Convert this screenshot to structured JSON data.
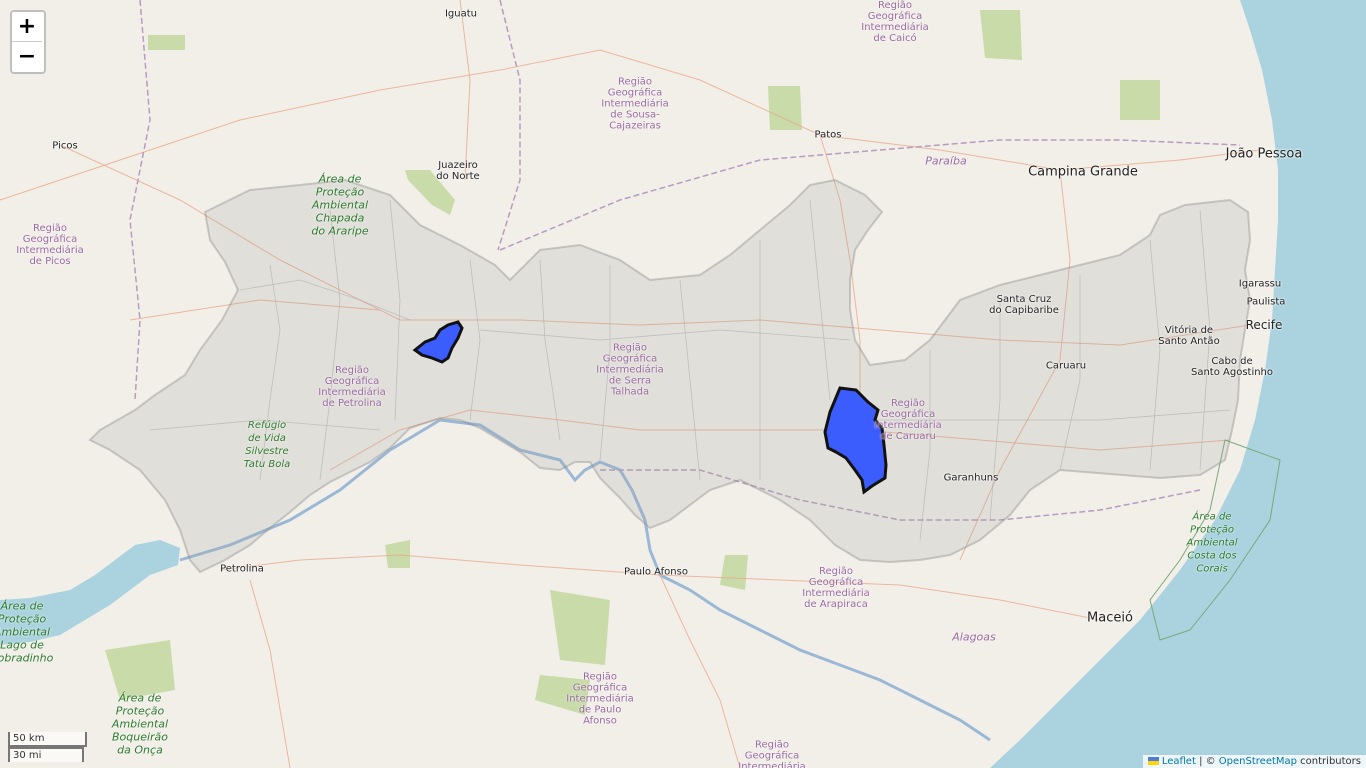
{
  "controls": {
    "zoom_in": "+",
    "zoom_out": "−",
    "scale_metric": "50 km",
    "scale_imperial": "30 mi"
  },
  "attribution": {
    "flag_icon": "ukraine-flag-icon",
    "leaflet": "Leaflet",
    "separator": " | © ",
    "osm": "OpenStreetMap",
    "suffix": " contributors"
  },
  "colors": {
    "sea": "#aad3df",
    "land": "#f2efe9",
    "overlay_fill": "#9e9e9e",
    "selected_fill": "#3355ff",
    "selected_stroke": "#111111",
    "park_green": "#c8dba9",
    "river": "#9ab8d6"
  },
  "labels": {
    "cities": {
      "iguatu": "Iguatu",
      "picos": "Picos",
      "juazeiro": "Juazeiro\ndo Norte",
      "patos": "Patos",
      "campina": "Campina Grande",
      "joao_pessoa": "João Pessoa",
      "igarassu": "Igarassu",
      "paulista": "Paulista",
      "recife": "Recife",
      "santa_cruz": "Santa Cruz\ndo Capibaribe",
      "vitoria": "Vitória de\nSanto Antão",
      "cabo": "Cabo de\nSanto Agostinho",
      "caruaru": "Caruaru",
      "garanhuns": "Garanhuns",
      "petrolina": "Petrolina",
      "paulo_afonso": "Paulo Afonso",
      "maceio": "Maceió"
    },
    "regions": {
      "caico": "Região\nGeográfica\nIntermediária\nde Caicó",
      "sousa": "Região\nGeográfica\nIntermediária\nde Sousa-\nCajazeiras",
      "picos": "Região\nGeográfica\nIntermediária\nde Picos",
      "serra_talhada": "Região\nGeográfica\nIntermediária\nde Serra\nTalhada",
      "petrolina": "Região\nGeográfica\nIntermediária\nde Petrolina",
      "caruaru": "Região\nGeográfica\nIntermediária\nde Caruaru",
      "arapiraca": "Região\nGeográfica\nIntermediária\nde Arapiraca",
      "paulo_afonso": "Região\nGeográfica\nIntermediária\nde Paulo\nAfonso",
      "bottom": "Região\nGeográfica\nIntermediária"
    },
    "parks": {
      "araripe": "Área de\nProteção\nAmbiental\nChapada\ndo Araripe",
      "tatu_bola": "Refúgio\nde Vida\nSilvestre\nTatu Bola",
      "sobradinho": "Área de\nProteção\nAmbiental\nLago de\nSobradinho",
      "boqueirao": "Área de\nProteção\nAmbiental\nBoqueirão\nda Onça",
      "corais": "Área de\nProteção\nAmbiental\nCosta dos\nCorais"
    },
    "states": {
      "paraiba": "Paraíba",
      "alagoas": "Alagoas"
    }
  }
}
